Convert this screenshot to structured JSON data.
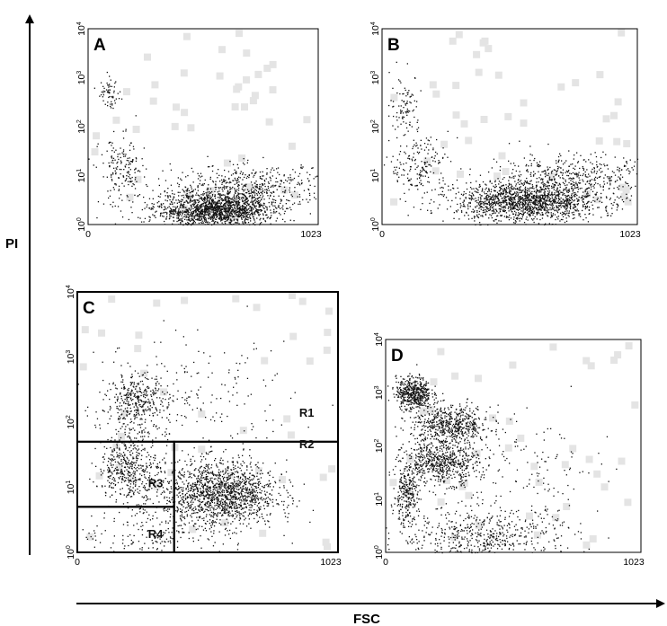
{
  "figure": {
    "y_axis_label": "PI",
    "x_axis_label": "FSC"
  },
  "chart_data": [
    {
      "type": "scatter",
      "panel_label": "A",
      "xlabel": "FSC",
      "ylabel": "PI",
      "x_ticks": [
        "0",
        "1023"
      ],
      "y_ticks": [
        {
          "base": "10",
          "exp": "0"
        },
        {
          "base": "10",
          "exp": "1"
        },
        {
          "base": "10",
          "exp": "2"
        },
        {
          "base": "10",
          "exp": "3"
        },
        {
          "base": "10",
          "exp": "4"
        }
      ],
      "xlim": [
        0,
        1023
      ],
      "ylim": [
        1,
        10000
      ],
      "y_scale": "log",
      "regions": [],
      "populations": [
        {
          "x": 560,
          "y": 2,
          "sx": 130,
          "sy": 0.18,
          "n": 1600
        },
        {
          "x": 720,
          "y": 6,
          "sx": 170,
          "sy": 0.22,
          "n": 500
        },
        {
          "x": 90,
          "y": 500,
          "sx": 25,
          "sy": 0.15,
          "n": 60
        },
        {
          "x": 150,
          "y": 12,
          "sx": 50,
          "sy": 0.35,
          "n": 180
        }
      ]
    },
    {
      "type": "scatter",
      "panel_label": "B",
      "xlabel": "FSC",
      "ylabel": "PI",
      "x_ticks": [
        "0",
        "1023"
      ],
      "y_ticks": [
        {
          "base": "10",
          "exp": "0"
        },
        {
          "base": "10",
          "exp": "1"
        },
        {
          "base": "10",
          "exp": "2"
        },
        {
          "base": "10",
          "exp": "3"
        },
        {
          "base": "10",
          "exp": "4"
        }
      ],
      "xlim": [
        0,
        1023
      ],
      "ylim": [
        1,
        10000
      ],
      "y_scale": "log",
      "regions": [],
      "populations": [
        {
          "x": 580,
          "y": 3,
          "sx": 140,
          "sy": 0.2,
          "n": 1500
        },
        {
          "x": 760,
          "y": 9,
          "sx": 170,
          "sy": 0.25,
          "n": 500
        },
        {
          "x": 90,
          "y": 300,
          "sx": 30,
          "sy": 0.3,
          "n": 90
        },
        {
          "x": 150,
          "y": 15,
          "sx": 60,
          "sy": 0.35,
          "n": 200
        }
      ]
    },
    {
      "type": "scatter",
      "panel_label": "C",
      "xlabel": "FSC",
      "ylabel": "PI",
      "x_ticks": [
        "0",
        "1023"
      ],
      "y_ticks": [
        {
          "base": "10",
          "exp": "0"
        },
        {
          "base": "10",
          "exp": "1"
        },
        {
          "base": "10",
          "exp": "2"
        },
        {
          "base": "10",
          "exp": "3"
        },
        {
          "base": "10",
          "exp": "4"
        }
      ],
      "xlim": [
        0,
        1023
      ],
      "ylim": [
        1,
        10000
      ],
      "y_scale": "log",
      "regions": [
        {
          "name": "R1",
          "x_range": [
            0,
            1023
          ],
          "y_range": [
            50,
            10000
          ]
        },
        {
          "name": "R2",
          "x_range": [
            380,
            1023
          ],
          "y_range": [
            1,
            50
          ]
        },
        {
          "name": "R3",
          "x_range": [
            0,
            380
          ],
          "y_range": [
            5,
            50
          ]
        },
        {
          "name": "R4",
          "x_range": [
            0,
            380
          ],
          "y_range": [
            1,
            5
          ]
        }
      ],
      "populations": [
        {
          "x": 560,
          "y": 8,
          "sx": 110,
          "sy": 0.25,
          "n": 1500
        },
        {
          "x": 200,
          "y": 20,
          "sx": 60,
          "sy": 0.25,
          "n": 450
        },
        {
          "x": 230,
          "y": 200,
          "sx": 60,
          "sy": 0.22,
          "n": 350
        },
        {
          "x": 300,
          "y": 2,
          "sx": 150,
          "sy": 0.25,
          "n": 200
        },
        {
          "x": 400,
          "y": 200,
          "sx": 220,
          "sy": 0.45,
          "n": 250
        }
      ]
    },
    {
      "type": "scatter",
      "panel_label": "D",
      "xlabel": "FSC",
      "ylabel": "PI",
      "x_ticks": [
        "0",
        "1023"
      ],
      "y_ticks": [
        {
          "base": "10",
          "exp": "0"
        },
        {
          "base": "10",
          "exp": "1"
        },
        {
          "base": "10",
          "exp": "2"
        },
        {
          "base": "10",
          "exp": "3"
        },
        {
          "base": "10",
          "exp": "4"
        }
      ],
      "xlim": [
        0,
        1023
      ],
      "ylim": [
        1,
        10000
      ],
      "y_scale": "log",
      "regions": [],
      "populations": [
        {
          "x": 110,
          "y": 1000,
          "sx": 35,
          "sy": 0.15,
          "n": 500
        },
        {
          "x": 260,
          "y": 250,
          "sx": 80,
          "sy": 0.18,
          "n": 600
        },
        {
          "x": 220,
          "y": 50,
          "sx": 75,
          "sy": 0.2,
          "n": 600
        },
        {
          "x": 80,
          "y": 12,
          "sx": 25,
          "sy": 0.25,
          "n": 250
        },
        {
          "x": 400,
          "y": 2,
          "sx": 180,
          "sy": 0.28,
          "n": 600
        },
        {
          "x": 500,
          "y": 30,
          "sx": 200,
          "sy": 0.5,
          "n": 150
        }
      ]
    }
  ]
}
